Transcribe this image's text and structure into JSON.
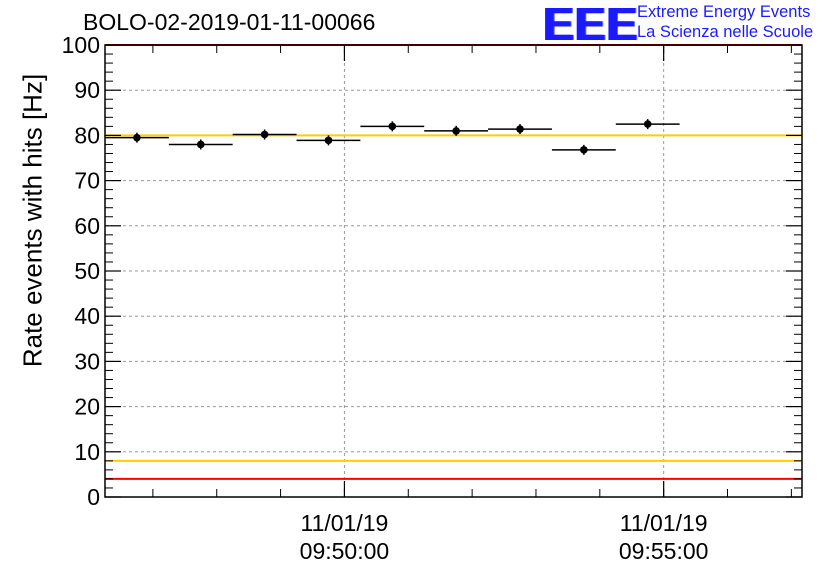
{
  "chart_data": {
    "type": "scatter",
    "title": "BOLO-02-2019-01-11-00066",
    "ylabel": "Rate events with hits [Hz]",
    "xlabel": "",
    "ylim": [
      0,
      100
    ],
    "yticks": [
      "0",
      "10",
      "20",
      "30",
      "40",
      "50",
      "60",
      "70",
      "80",
      "90",
      "100"
    ],
    "xticks": [
      {
        "date": "11/01/19",
        "time": "09:50:00",
        "x": "09:50:00"
      },
      {
        "date": "11/01/19",
        "time": "09:55:00",
        "x": "09:55:00"
      }
    ],
    "xlim": [
      "09:46:15",
      "09:57:10"
    ],
    "grid": true,
    "points": [
      {
        "x_start": "09:46:15",
        "x_end": "09:47:15",
        "y": 79.5
      },
      {
        "x_start": "09:47:15",
        "x_end": "09:48:15",
        "y": 78.0
      },
      {
        "x_start": "09:48:15",
        "x_end": "09:49:15",
        "y": 80.2
      },
      {
        "x_start": "09:49:15",
        "x_end": "09:50:15",
        "y": 78.9
      },
      {
        "x_start": "09:50:15",
        "x_end": "09:51:15",
        "y": 82.0
      },
      {
        "x_start": "09:51:15",
        "x_end": "09:52:15",
        "y": 81.0
      },
      {
        "x_start": "09:52:15",
        "x_end": "09:53:15",
        "y": 81.4
      },
      {
        "x_start": "09:53:15",
        "x_end": "09:54:15",
        "y": 76.8
      },
      {
        "x_start": "09:54:15",
        "x_end": "09:55:15",
        "y": 82.5
      }
    ],
    "reference_lines": [
      {
        "y": 100,
        "color": "#ff0000"
      },
      {
        "y": 80,
        "color": "#ffcc00"
      },
      {
        "y": 8,
        "color": "#ffcc00"
      },
      {
        "y": 4,
        "color": "#ff0000"
      }
    ]
  },
  "logo": {
    "mark": "EEE",
    "line1": "Extreme Energy Events",
    "line2": "La Scienza nelle Scuole",
    "color": "#1a1aff"
  }
}
